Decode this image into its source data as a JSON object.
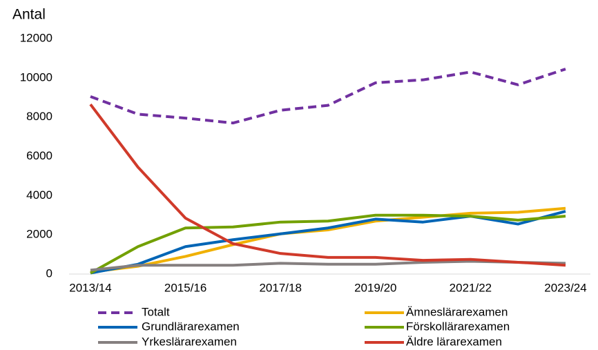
{
  "chart_data": {
    "type": "line",
    "ylabel": "Antal",
    "categories": [
      "2013/14",
      null,
      "2015/16",
      null,
      "2017/18",
      null,
      "2019/20",
      null,
      "2021/22",
      null,
      "2023/24"
    ],
    "ylim": [
      0,
      12000
    ],
    "yticks": [
      0,
      2000,
      4000,
      6000,
      8000,
      10000,
      12000
    ],
    "grid": false,
    "series": [
      {
        "name": "Totalt",
        "color": "#7030a0",
        "dashed": true,
        "values": [
          9050,
          8150,
          7950,
          7700,
          8350,
          8600,
          9750,
          9900,
          10300,
          9650,
          10450
        ]
      },
      {
        "name": "Ämneslärarexamen",
        "color": "#f0b000",
        "values": [
          100,
          400,
          900,
          1500,
          2050,
          2250,
          2700,
          2900,
          3100,
          3150,
          3350
        ]
      },
      {
        "name": "Grundlärarexamen",
        "color": "#0065b5",
        "values": [
          50,
          500,
          1400,
          1750,
          2050,
          2350,
          2800,
          2650,
          2950,
          2550,
          3200
        ]
      },
      {
        "name": "Förskollärarexamen",
        "color": "#72a000",
        "values": [
          50,
          1400,
          2350,
          2400,
          2650,
          2700,
          3000,
          3000,
          2950,
          2750,
          2950
        ]
      },
      {
        "name": "Yrkeslärarexamen",
        "color": "#857f7f",
        "values": [
          200,
          450,
          450,
          450,
          550,
          500,
          500,
          600,
          650,
          600,
          550
        ]
      },
      {
        "name": "Äldre lärarexamen",
        "color": "#d03a2a",
        "values": [
          8650,
          5450,
          2850,
          1550,
          1050,
          850,
          850,
          700,
          750,
          600,
          450
        ]
      }
    ]
  }
}
